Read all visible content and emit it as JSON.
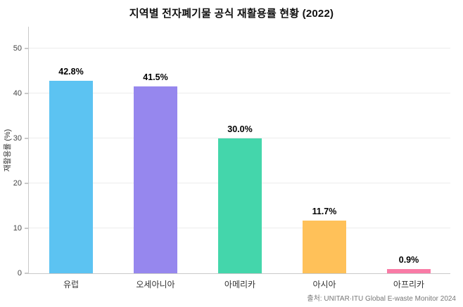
{
  "chart": {
    "title": "지역별 전자폐기물 공식 재활용률 현황 (2022)",
    "ylabel": "재활용률 (%)",
    "source": "출처: UNITAR·ITU Global E-waste Monitor 2024"
  },
  "chart_data": {
    "type": "bar",
    "title": "지역별 전자폐기물 공식 재활용률 현황 (2022)",
    "categories": [
      "유럽",
      "오세아니아",
      "아메리카",
      "아시아",
      "아프리카"
    ],
    "values": [
      42.8,
      41.5,
      30.0,
      11.7,
      0.9
    ],
    "value_labels": [
      "42.8%",
      "41.5%",
      "30.0%",
      "11.7%",
      "0.9%"
    ],
    "bar_colors": [
      "#5cc3f2",
      "#9687ee",
      "#44d6ab",
      "#ffc159",
      "#f97ba6"
    ],
    "xlabel": "",
    "ylabel": "재활용률 (%)",
    "ylim": [
      0,
      55
    ],
    "yticks": [
      0,
      10,
      20,
      30,
      40,
      50
    ],
    "grid": true,
    "legend": false,
    "source": "출처: UNITAR·ITU Global E-waste Monitor 2024"
  }
}
